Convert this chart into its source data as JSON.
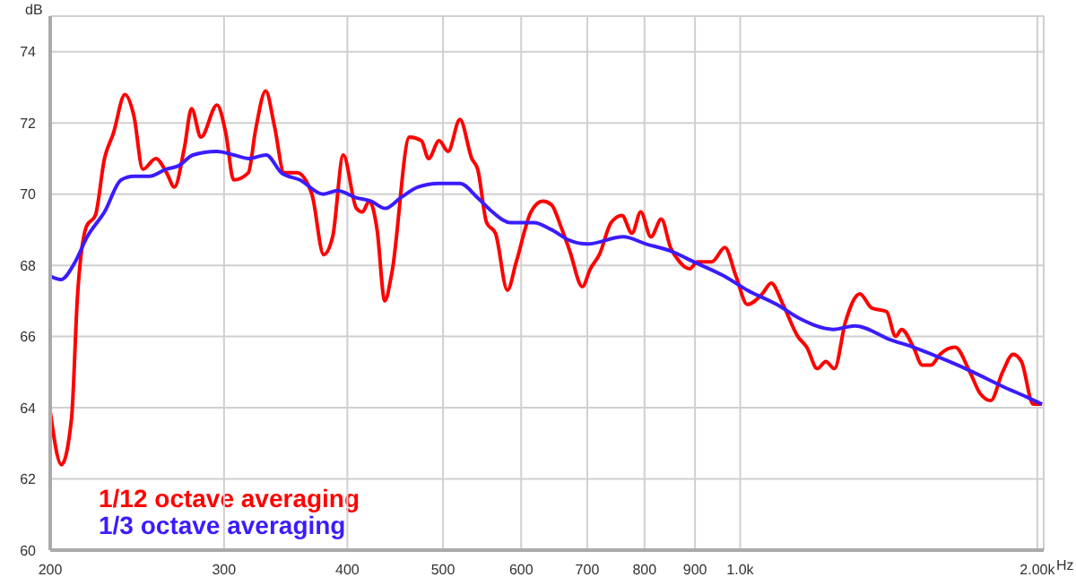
{
  "chart_data": {
    "type": "line",
    "xlabel": "Hz",
    "ylabel": "dB",
    "log": "x",
    "grid": true,
    "legend": "bottom left",
    "xlim": [
      200,
      2030
    ],
    "ylim": [
      60,
      75
    ],
    "xticks": [
      200,
      300,
      400,
      500,
      600,
      700,
      800,
      900,
      {
        "value": 1000,
        "label": "1.0k"
      },
      {
        "value": 2000,
        "label": "2.00k"
      }
    ],
    "yticks": [
      60,
      62,
      64,
      66,
      68,
      70,
      72,
      74
    ],
    "series": [
      {
        "name": "1/12 octave averaging",
        "color": "#ff0000",
        "x": [
          200,
          205.3,
          210.2,
          213.1,
          217.7,
          222.2,
          227,
          231.7,
          238.1,
          243.1,
          248.2,
          255.9,
          262.4,
          267.2,
          273.5,
          278.1,
          284.3,
          295.1,
          301.3,
          306.8,
          317.5,
          322.9,
          330.6,
          337.5,
          345.1,
          355.6,
          368.2,
          378.5,
          386.5,
          396.2,
          408.5,
          414.1,
          421.1,
          428.7,
          436.5,
          443.8,
          462.4,
          475.4,
          483.4,
          495.5,
          505.9,
          520.1,
          534.7,
          542.1,
          553.5,
          565.1,
          581,
          593.2,
          613.9,
          631,
          644,
          658,
          672,
          692,
          705,
          720,
          740,
          759,
          777,
          793,
          812,
          832,
          850,
          868,
          889,
          905,
          936,
          965,
          990,
          1017,
          1053,
          1075,
          1105,
          1144,
          1168,
          1197,
          1221,
          1246,
          1278,
          1322,
          1359,
          1407,
          1437,
          1457,
          1498,
          1529,
          1561,
          1594,
          1651,
          1709,
          1750,
          1794,
          1844,
          1890,
          1927,
          1981,
          2022
        ],
        "values": [
          63.9,
          62.4,
          63.7,
          67.1,
          69.1,
          69.4,
          71,
          71.7,
          72.8,
          72.2,
          70.7,
          71,
          70.6,
          70.2,
          71.3,
          72.4,
          71.6,
          72.5,
          71.7,
          70.4,
          70.6,
          71.8,
          72.9,
          71.9,
          70.6,
          70.6,
          70,
          68.3,
          68.8,
          71.1,
          69.6,
          69.5,
          69.8,
          69,
          67,
          67.8,
          71.6,
          71.5,
          71,
          71.5,
          71.2,
          72.1,
          71,
          70.7,
          69.2,
          68.9,
          67.3,
          68.1,
          69.5,
          69.8,
          69.7,
          69.1,
          68.4,
          67.4,
          67.9,
          68.3,
          69.2,
          69.4,
          68.9,
          69.5,
          68.8,
          69.3,
          68.5,
          68.1,
          67.9,
          68.1,
          68.1,
          68.5,
          67.7,
          66.9,
          67.2,
          67.5,
          66.9,
          66,
          65.7,
          65.1,
          65.3,
          65.1,
          66.4,
          67.2,
          66.8,
          66.7,
          66,
          66.2,
          65.7,
          65.2,
          65.2,
          65.5,
          65.7,
          65,
          64.4,
          64.2,
          65,
          65.5,
          65.3,
          64.1,
          64.1
        ]
      },
      {
        "name": "1/3 octave averaging",
        "color": "#3a1cff",
        "x": [
          200,
          205,
          212,
          218,
          227,
          236,
          243,
          252,
          262,
          270,
          279,
          295,
          307,
          318,
          331,
          343,
          358,
          378,
          391,
          408,
          423,
          437,
          453,
          472,
          495,
          520,
          542,
          561,
          585,
          618,
          644,
          672,
          700,
          761,
          803,
          850,
          897,
          963,
          1017,
          1089,
          1150,
          1243,
          1307,
          1423,
          1498,
          1628,
          1722,
          1844,
          1951,
          2022
        ],
        "values": [
          67.7,
          67.6,
          68.1,
          68.8,
          69.5,
          70.4,
          70.5,
          70.5,
          70.7,
          70.8,
          71.1,
          71.2,
          71.1,
          71,
          71.1,
          70.6,
          70.4,
          70,
          70.1,
          69.9,
          69.8,
          69.6,
          69.9,
          70.2,
          70.3,
          70.3,
          69.9,
          69.5,
          69.2,
          69.2,
          69,
          68.7,
          68.6,
          68.8,
          68.6,
          68.4,
          68.1,
          67.7,
          67.3,
          66.9,
          66.5,
          66.2,
          66.3,
          65.9,
          65.7,
          65.3,
          65,
          64.6,
          64.3,
          64.1
        ]
      }
    ]
  }
}
